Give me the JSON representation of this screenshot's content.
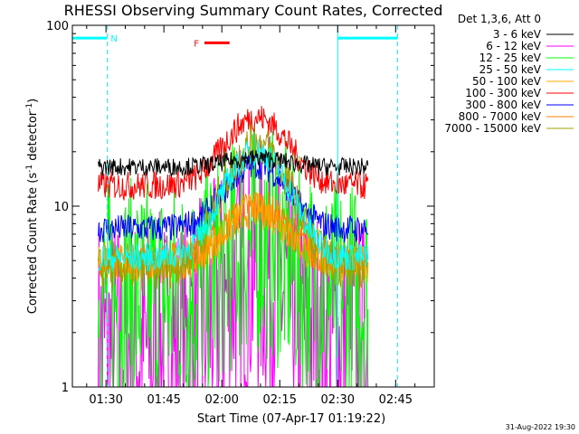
{
  "chart_data": {
    "type": "line",
    "title": "RHESSI Observing Summary Count Rates, Corrected",
    "xlabel": "Start Time (07-Apr-17 01:19:22)",
    "ylabel": "Corrected Count Rate (s",
    "ylabel_sup1": "-1",
    "ylabel_mid": " detector",
    "ylabel_sup2": "-1",
    "ylabel_end": ")",
    "yscale": "log",
    "ylim": [
      1,
      100
    ],
    "xlim_minutes": [
      1.3,
      3.0
    ],
    "x_unit": "minutes after 01:20 UT",
    "x_ticks": [
      {
        "label": "01:30",
        "value": 10
      },
      {
        "label": "01:45",
        "value": 25
      },
      {
        "label": "02:00",
        "value": 40
      },
      {
        "label": "02:15",
        "value": 55
      },
      {
        "label": "02:30",
        "value": 70
      },
      {
        "label": "02:45",
        "value": 85
      }
    ],
    "y_ticks": [
      {
        "label": "1",
        "value": 1
      },
      {
        "label": "10",
        "value": 10
      },
      {
        "label": "100",
        "value": 100
      }
    ],
    "legend_title": "Det 1,3,6, Att 0",
    "legend_position": "top-right",
    "data_start_minute": 8,
    "data_end_minute": 78,
    "series": [
      {
        "name": "3 - 6 keV",
        "color": "#000000",
        "base": 16.5,
        "peak": 18.5,
        "noise": 0.05
      },
      {
        "name": "6 - 12 keV",
        "color": "#ff00ff",
        "base": 1.6,
        "peak": 4.5,
        "noise": 0.35
      },
      {
        "name": "12 - 25 keV",
        "color": "#00ff00",
        "base": 3.2,
        "peak": 6.5,
        "noise": 0.3
      },
      {
        "name": "25 - 50 keV",
        "color": "#00ffff",
        "base": 5.2,
        "peak": 20,
        "noise": 0.08
      },
      {
        "name": "50 - 100 keV",
        "color": "#ffa500",
        "base": 4.8,
        "peak": 9.5,
        "noise": 0.1
      },
      {
        "name": "100 - 300 keV",
        "color": "#ff0000",
        "base": 13,
        "peak": 31,
        "noise": 0.08
      },
      {
        "name": "300 - 800 keV",
        "color": "#0000ff",
        "base": 7.5,
        "peak": 17,
        "noise": 0.08
      },
      {
        "name": "800 - 7000 keV",
        "color": "#ff7f00",
        "base": 5,
        "peak": 10,
        "noise": 0.1
      },
      {
        "name": "7000 - 15000 keV",
        "color": "#a0a000",
        "base": 4.5,
        "peak": 22,
        "noise": 0.12
      }
    ],
    "peak_minute": 49,
    "peak_width": 10,
    "annotations": [
      {
        "label": "N",
        "color": "#00ffff",
        "start_minute": 1.3,
        "end_minute": 10.3,
        "level": 85
      },
      {
        "label": "",
        "color": "#00ffff",
        "start_minute": 70,
        "end_minute": 85.5,
        "level": 85
      },
      {
        "label": "F",
        "color": "#ff0000",
        "start_minute": 35.5,
        "end_minute": 42,
        "level": 80
      }
    ],
    "vertical_markers": [
      {
        "minute": 1.3,
        "style": "solid",
        "color": "#00ffff"
      },
      {
        "minute": 10.3,
        "style": "dashed",
        "color": "#00ffff"
      },
      {
        "minute": 70,
        "style": "solid",
        "color": "#00ffff"
      },
      {
        "minute": 85.5,
        "style": "dashed",
        "color": "#00ffff"
      }
    ],
    "footer_date": "31-Aug-2022 19:30"
  }
}
